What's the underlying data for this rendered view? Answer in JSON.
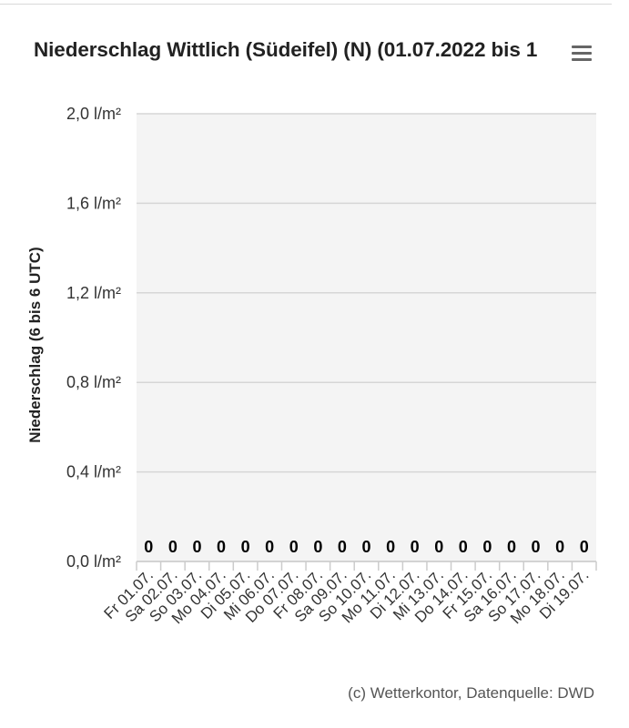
{
  "chart_data": {
    "type": "bar",
    "title": "Niederschlag Wittlich (Südeifel) (N) (01.07.2022 bis 1",
    "ylabel": "Niederschlag (6 bis 6 UTC)",
    "xlabel": "",
    "ylim": [
      0,
      2.0
    ],
    "y_unit": "l/m²",
    "y_ticks": [
      "0,0 l/m²",
      "0,4 l/m²",
      "0,8 l/m²",
      "1,2 l/m²",
      "1,6 l/m²",
      "2,0 l/m²"
    ],
    "y_tick_values": [
      0,
      0.4,
      0.8,
      1.2,
      1.6,
      2.0
    ],
    "categories": [
      "Fr 01.07.",
      "Sa 02.07.",
      "So 03.07.",
      "Mo 04.07.",
      "Di 05.07.",
      "Mi 06.07.",
      "Do 07.07.",
      "Fr 08.07.",
      "Sa 09.07.",
      "So 10.07.",
      "Mo 11.07.",
      "Di 12.07.",
      "Mi 13.07.",
      "Do 14.07.",
      "Fr 15.07.",
      "Sa 16.07.",
      "So 17.07.",
      "Mo 18.07.",
      "Di 19.07."
    ],
    "values": [
      0,
      0,
      0,
      0,
      0,
      0,
      0,
      0,
      0,
      0,
      0,
      0,
      0,
      0,
      0,
      0,
      0,
      0,
      0
    ],
    "data_labels": [
      "0",
      "0",
      "0",
      "0",
      "0",
      "0",
      "0",
      "0",
      "0",
      "0",
      "0",
      "0",
      "0",
      "0",
      "0",
      "0",
      "0",
      "0",
      "0"
    ],
    "grid": true,
    "legend": "none"
  },
  "credits": "(c) Wetterkontor, Datenquelle: DWD",
  "colors": {
    "plot_background": "#f4f4f4",
    "grid": "#d6d6d6",
    "axis": "#cccccc"
  },
  "icons": {
    "menu": "hamburger-menu-icon"
  }
}
